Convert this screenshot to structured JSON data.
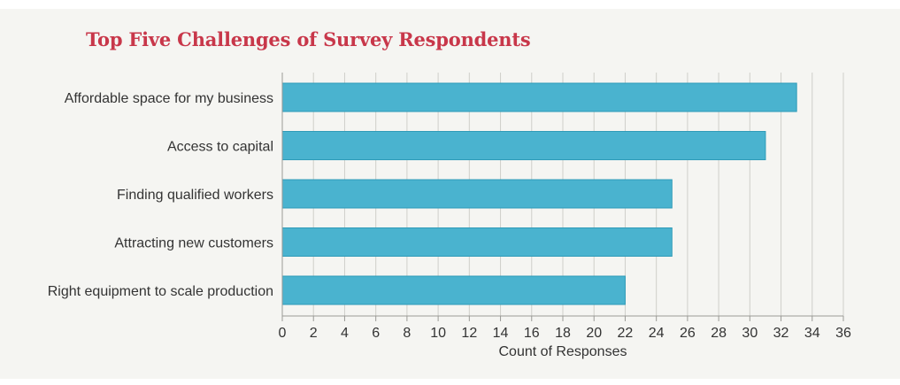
{
  "chart_data": {
    "type": "bar",
    "orientation": "horizontal",
    "title": "Top Five Challenges of Survey Respondents",
    "xlabel": "Count of Responses",
    "ylabel": "",
    "categories": [
      "Affordable space for my business",
      "Access to capital",
      "Finding qualified workers",
      "Attracting new customers",
      "Right equipment to scale production"
    ],
    "values": [
      33,
      31,
      25,
      25,
      22
    ],
    "xlim": [
      0,
      36
    ],
    "xticks": [
      0,
      2,
      4,
      6,
      8,
      10,
      12,
      14,
      16,
      18,
      20,
      22,
      24,
      26,
      28,
      30,
      32,
      34,
      36
    ],
    "grid": "vertical",
    "legend": "none"
  },
  "colors": {
    "title": "#c8374a",
    "bar_fill": "#4ab3cf",
    "bar_stroke": "#2f9bb8",
    "grid": "#cfcfca",
    "axis": "#9a9a96",
    "text": "#333333",
    "background": "#f5f5f2"
  }
}
